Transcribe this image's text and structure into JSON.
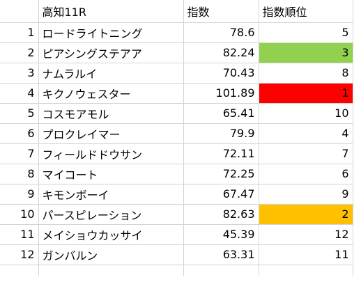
{
  "sheet": {
    "header": {
      "race": "高知11R",
      "index": "指数",
      "rank": "指数順位"
    },
    "rows": [
      {
        "row": "1",
        "name": "ロードライトニング",
        "index": "78.6",
        "rank": "5",
        "rank_fill": ""
      },
      {
        "row": "2",
        "name": "ピアシングステアア",
        "index": "82.24",
        "rank": "3",
        "rank_fill": "#92d050"
      },
      {
        "row": "3",
        "name": "ナムラルイ",
        "index": "70.43",
        "rank": "8",
        "rank_fill": ""
      },
      {
        "row": "4",
        "name": "キクノウェスター",
        "index": "101.89",
        "rank": "1",
        "rank_fill": "#ff0000"
      },
      {
        "row": "5",
        "name": "コスモアモル",
        "index": "65.41",
        "rank": "10",
        "rank_fill": ""
      },
      {
        "row": "6",
        "name": "プロクレイマー",
        "index": "79.9",
        "rank": "4",
        "rank_fill": ""
      },
      {
        "row": "7",
        "name": "フィールドドウサン",
        "index": "72.11",
        "rank": "7",
        "rank_fill": ""
      },
      {
        "row": "8",
        "name": "マイコート",
        "index": "72.25",
        "rank": "6",
        "rank_fill": ""
      },
      {
        "row": "9",
        "name": "キモンボーイ",
        "index": "67.47",
        "rank": "9",
        "rank_fill": ""
      },
      {
        "row": "10",
        "name": "パースピレーション",
        "index": "82.63",
        "rank": "2",
        "rank_fill": "#ffc000"
      },
      {
        "row": "11",
        "name": "メイショウカッサイ",
        "index": "45.39",
        "rank": "12",
        "rank_fill": ""
      },
      {
        "row": "12",
        "name": "ガンバルン",
        "index": "63.31",
        "rank": "11",
        "rank_fill": ""
      }
    ]
  }
}
